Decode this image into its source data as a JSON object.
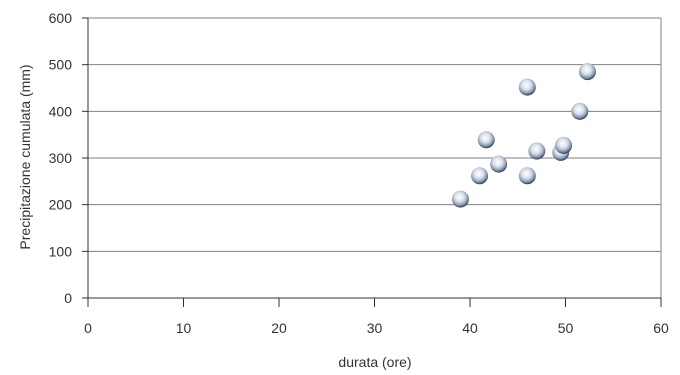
{
  "chart_data": {
    "type": "scatter",
    "title": "",
    "xlabel": "durata (ore)",
    "ylabel": "Precipitazione cumulata (mm)",
    "xlim": [
      0,
      60
    ],
    "ylim": [
      0,
      600
    ],
    "x_ticks": [
      0,
      10,
      20,
      30,
      40,
      50,
      60
    ],
    "y_ticks": [
      0,
      100,
      200,
      300,
      400,
      500,
      600
    ],
    "grid": "horizontal",
    "series": [
      {
        "points": [
          {
            "x": 39.0,
            "y": 212
          },
          {
            "x": 41.0,
            "y": 262
          },
          {
            "x": 41.7,
            "y": 339
          },
          {
            "x": 43.0,
            "y": 287
          },
          {
            "x": 46.0,
            "y": 452
          },
          {
            "x": 46.0,
            "y": 262
          },
          {
            "x": 47.0,
            "y": 315
          },
          {
            "x": 49.5,
            "y": 312
          },
          {
            "x": 49.8,
            "y": 327
          },
          {
            "x": 51.5,
            "y": 400
          },
          {
            "x": 52.3,
            "y": 485
          }
        ]
      }
    ],
    "colors": {
      "grid": "#808080",
      "axis": "#333333",
      "marker_light": "#f4f6fa",
      "marker_mid": "#a9b7c9",
      "marker_dark": "#233a57"
    }
  }
}
